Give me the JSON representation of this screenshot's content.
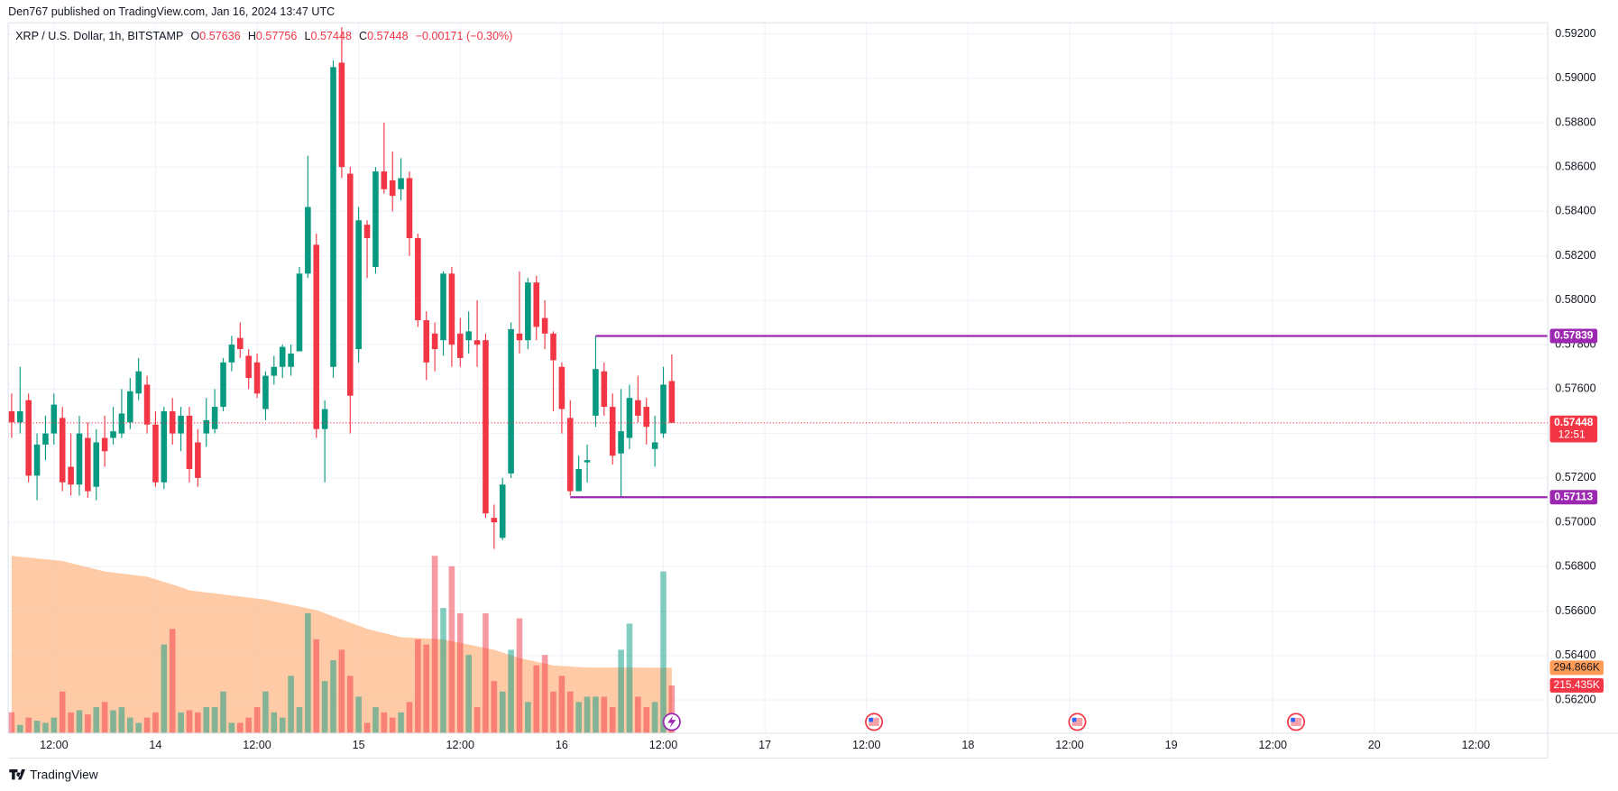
{
  "header": "Den767 published on TradingView.com, Jan 16, 2024 13:47 UTC",
  "footer": "TradingView",
  "chart_data": {
    "type": "candlestick",
    "legend": {
      "symbol": "XRP / U.S. Dollar, 1h, BITSTAMP",
      "o_label": "O",
      "o": "0.57636",
      "h_label": "H",
      "h": "0.57756",
      "l_label": "L",
      "l": "0.57448",
      "c_label": "C",
      "c": "0.57448",
      "change": "−0.00171 (−0.30%)"
    },
    "up_color": "#089981",
    "down_color": "#f23645",
    "x": [
      7,
      8,
      9,
      10,
      11,
      12,
      13,
      14,
      15,
      16,
      17,
      18,
      19,
      20,
      21,
      22,
      23,
      24,
      25,
      26,
      27,
      28,
      29,
      30,
      31,
      32,
      33,
      34,
      35,
      36,
      37,
      38,
      39,
      40,
      41,
      42,
      43,
      44,
      45,
      46,
      47,
      48,
      49,
      50,
      51,
      52,
      53,
      54,
      55,
      56,
      57,
      58,
      59,
      60,
      61,
      62,
      63,
      64,
      65,
      66,
      67,
      68,
      69,
      70,
      71,
      72,
      73,
      74,
      75,
      76,
      77,
      78,
      79,
      80,
      81,
      82,
      83,
      84,
      85
    ],
    "open": [
      0.575,
      0.5745,
      0.5755,
      0.5721,
      0.5735,
      0.574,
      0.5747,
      0.5725,
      0.5717,
      0.5738,
      0.5716,
      0.5738,
      0.5738,
      0.574,
      0.5745,
      0.5758,
      0.5762,
      0.5744,
      0.5718,
      0.575,
      0.574,
      0.5748,
      0.5736,
      0.574,
      0.5742,
      0.5752,
      0.5772,
      0.5783,
      0.5775,
      0.5772,
      0.5751,
      0.5766,
      0.577,
      0.577,
      0.5777,
      0.5812,
      0.5825,
      0.5742,
      0.577,
      0.5907,
      0.5857,
      0.5778,
      0.5834,
      0.5815,
      0.5858,
      0.5854,
      0.585,
      0.5855,
      0.5828,
      0.5791,
      0.5785,
      0.5782,
      0.5812,
      0.5785,
      0.5782,
      0.5782,
      0.5782,
      0.5702,
      0.5693,
      0.5722,
      0.5785,
      0.5782,
      0.5808,
      0.5792,
      0.5785,
      0.577,
      0.5747,
      0.5714,
      0.5727,
      0.5748,
      0.5768,
      0.5752,
      0.5731,
      0.5738,
      0.5755,
      0.5752,
      0.5733,
      0.574,
      0.57636
    ],
    "high": [
      0.5758,
      0.577,
      0.5758,
      0.574,
      0.5748,
      0.5758,
      0.5752,
      0.574,
      0.5748,
      0.5745,
      0.5742,
      0.5748,
      0.5752,
      0.576,
      0.5765,
      0.5774,
      0.5766,
      0.575,
      0.5752,
      0.5756,
      0.5752,
      0.5752,
      0.5742,
      0.5756,
      0.576,
      0.5774,
      0.5784,
      0.579,
      0.5778,
      0.5776,
      0.5768,
      0.5775,
      0.578,
      0.578,
      0.5815,
      0.5865,
      0.583,
      0.5755,
      0.5908,
      0.5923,
      0.586,
      0.5842,
      0.5836,
      0.586,
      0.588,
      0.5867,
      0.5864,
      0.5858,
      0.583,
      0.5795,
      0.579,
      0.5813,
      0.5815,
      0.5792,
      0.5795,
      0.58,
      0.5785,
      0.5708,
      0.572,
      0.579,
      0.5813,
      0.581,
      0.5811,
      0.58,
      0.5786,
      0.5772,
      0.5755,
      0.573,
      0.5735,
      0.5784,
      0.5772,
      0.5758,
      0.576,
      0.5762,
      0.5766,
      0.5756,
      0.5748,
      0.577,
      0.57756
    ],
    "low": [
      0.5738,
      0.574,
      0.5718,
      0.571,
      0.5728,
      0.5735,
      0.5714,
      0.5712,
      0.5712,
      0.5711,
      0.571,
      0.5725,
      0.5735,
      0.5738,
      0.5742,
      0.5755,
      0.574,
      0.5716,
      0.5715,
      0.5735,
      0.5732,
      0.5718,
      0.5716,
      0.5734,
      0.574,
      0.575,
      0.5768,
      0.5774,
      0.576,
      0.5756,
      0.5746,
      0.5762,
      0.5765,
      0.5766,
      0.5777,
      0.581,
      0.5738,
      0.5718,
      0.5765,
      0.5855,
      0.574,
      0.5772,
      0.581,
      0.5812,
      0.5848,
      0.584,
      0.5845,
      0.582,
      0.5788,
      0.5764,
      0.5768,
      0.5775,
      0.577,
      0.577,
      0.5776,
      0.577,
      0.5702,
      0.5688,
      0.5692,
      0.572,
      0.5776,
      0.5778,
      0.5782,
      0.5778,
      0.575,
      0.574,
      0.5712,
      0.5714,
      0.5718,
      0.5743,
      0.5748,
      0.5726,
      0.5711,
      0.5733,
      0.5745,
      0.5735,
      0.5725,
      0.5738,
      0.57448
    ],
    "close": [
      0.5745,
      0.575,
      0.5721,
      0.5735,
      0.574,
      0.5753,
      0.5718,
      0.5717,
      0.574,
      0.5714,
      0.5736,
      0.5732,
      0.5741,
      0.5749,
      0.5759,
      0.5768,
      0.5744,
      0.5718,
      0.575,
      0.574,
      0.5748,
      0.5724,
      0.572,
      0.5746,
      0.5752,
      0.5772,
      0.578,
      0.5778,
      0.5765,
      0.5758,
      0.5766,
      0.577,
      0.5779,
      0.5776,
      0.5812,
      0.5842,
      0.5742,
      0.5751,
      0.5905,
      0.586,
      0.5757,
      0.5836,
      0.5828,
      0.5858,
      0.585,
      0.5847,
      0.5855,
      0.5828,
      0.5791,
      0.5772,
      0.5778,
      0.5812,
      0.578,
      0.5774,
      0.5786,
      0.578,
      0.5704,
      0.57,
      0.5717,
      0.5787,
      0.5782,
      0.5808,
      0.5788,
      0.5785,
      0.5773,
      0.5751,
      0.5714,
      0.5724,
      0.5728,
      0.5769,
      0.5752,
      0.573,
      0.5741,
      0.5756,
      0.5748,
      0.5743,
      0.5736,
      0.5762,
      0.57448
    ],
    "volume": [
      94000,
      37600,
      70500,
      56400,
      47000,
      70500,
      188000,
      94000,
      103400,
      84600,
      117500,
      141000,
      103400,
      117500,
      70500,
      47000,
      70500,
      94000,
      399500,
      470000,
      94000,
      103400,
      94000,
      117500,
      117500,
      188000,
      47000,
      47000,
      70500,
      117500,
      188000,
      94000,
      70500,
      258500,
      117500,
      540500,
      423000,
      235000,
      329000,
      376000,
      258500,
      164500,
      47000,
      117500,
      94000,
      70500,
      94000,
      141000,
      423000,
      399500,
      799000,
      564000,
      752000,
      540500,
      352500,
      117500,
      540500,
      235000,
      188000,
      376000,
      517000,
      141000,
      305500,
      352500,
      188000,
      258500,
      188000,
      141000,
      164500,
      164500,
      164500,
      117500,
      376000,
      493500,
      164500,
      117500,
      141000,
      728500,
      215435
    ],
    "volume_label": "215.435K",
    "volume_ma": {
      "x": [
        7,
        13,
        18,
        23,
        27,
        28,
        37,
        43,
        49,
        53,
        58,
        64,
        67,
        71,
        75,
        80,
        85
      ],
      "values": [
        799000,
        775500,
        728500,
        705000,
        658000,
        643900,
        601600,
        554600,
        470000,
        432400,
        423000,
        376000,
        338400,
        305500,
        296100,
        296100,
        294866
      ],
      "label": "294.866K",
      "color": "#ffb98a"
    },
    "levels": [
      {
        "value": 0.57839,
        "from": 76,
        "color": "#9c27b0"
      },
      {
        "value": 0.57113,
        "from": 73,
        "color": "#9c27b0"
      }
    ],
    "last_price": 0.57448,
    "countdown": "12:51",
    "xlim": [
      6.6,
      188.5
    ],
    "xticks": [
      {
        "value": 12,
        "label": "12:00"
      },
      {
        "value": 24,
        "label": "14"
      },
      {
        "value": 36,
        "label": "12:00"
      },
      {
        "value": 48,
        "label": "15"
      },
      {
        "value": 60,
        "label": "12:00"
      },
      {
        "value": 72,
        "label": "16"
      },
      {
        "value": 84,
        "label": "12:00"
      },
      {
        "value": 96,
        "label": "17"
      },
      {
        "value": 108,
        "label": "12:00"
      },
      {
        "value": 120,
        "label": "18"
      },
      {
        "value": 132,
        "label": "12:00"
      },
      {
        "value": 144,
        "label": "19"
      },
      {
        "value": 156,
        "label": "12:00"
      },
      {
        "value": 168,
        "label": "20"
      },
      {
        "value": 180,
        "label": "12:00"
      }
    ],
    "ylim": [
      0.5605,
      0.5925
    ],
    "yticks": [
      {
        "value": 0.562,
        "label": "0.56200"
      },
      {
        "value": 0.564,
        "label": "0.56400"
      },
      {
        "value": 0.566,
        "label": "0.56600"
      },
      {
        "value": 0.568,
        "label": "0.56800"
      },
      {
        "value": 0.57,
        "label": "0.57000"
      },
      {
        "value": 0.572,
        "label": "0.57200"
      },
      {
        "value": 0.574,
        "label": "0.57400"
      },
      {
        "value": 0.576,
        "label": "0.57600"
      },
      {
        "value": 0.578,
        "label": "0.57800"
      },
      {
        "value": 0.58,
        "label": "0.58000"
      },
      {
        "value": 0.582,
        "label": "0.58200"
      },
      {
        "value": 0.584,
        "label": "0.58400"
      },
      {
        "value": 0.586,
        "label": "0.58600"
      },
      {
        "value": 0.588,
        "label": "0.58800"
      },
      {
        "value": 0.59,
        "label": "0.59000"
      },
      {
        "value": 0.592,
        "label": "0.59200"
      }
    ],
    "y2lim": [
      0,
      3200000
    ],
    "grid": true
  }
}
